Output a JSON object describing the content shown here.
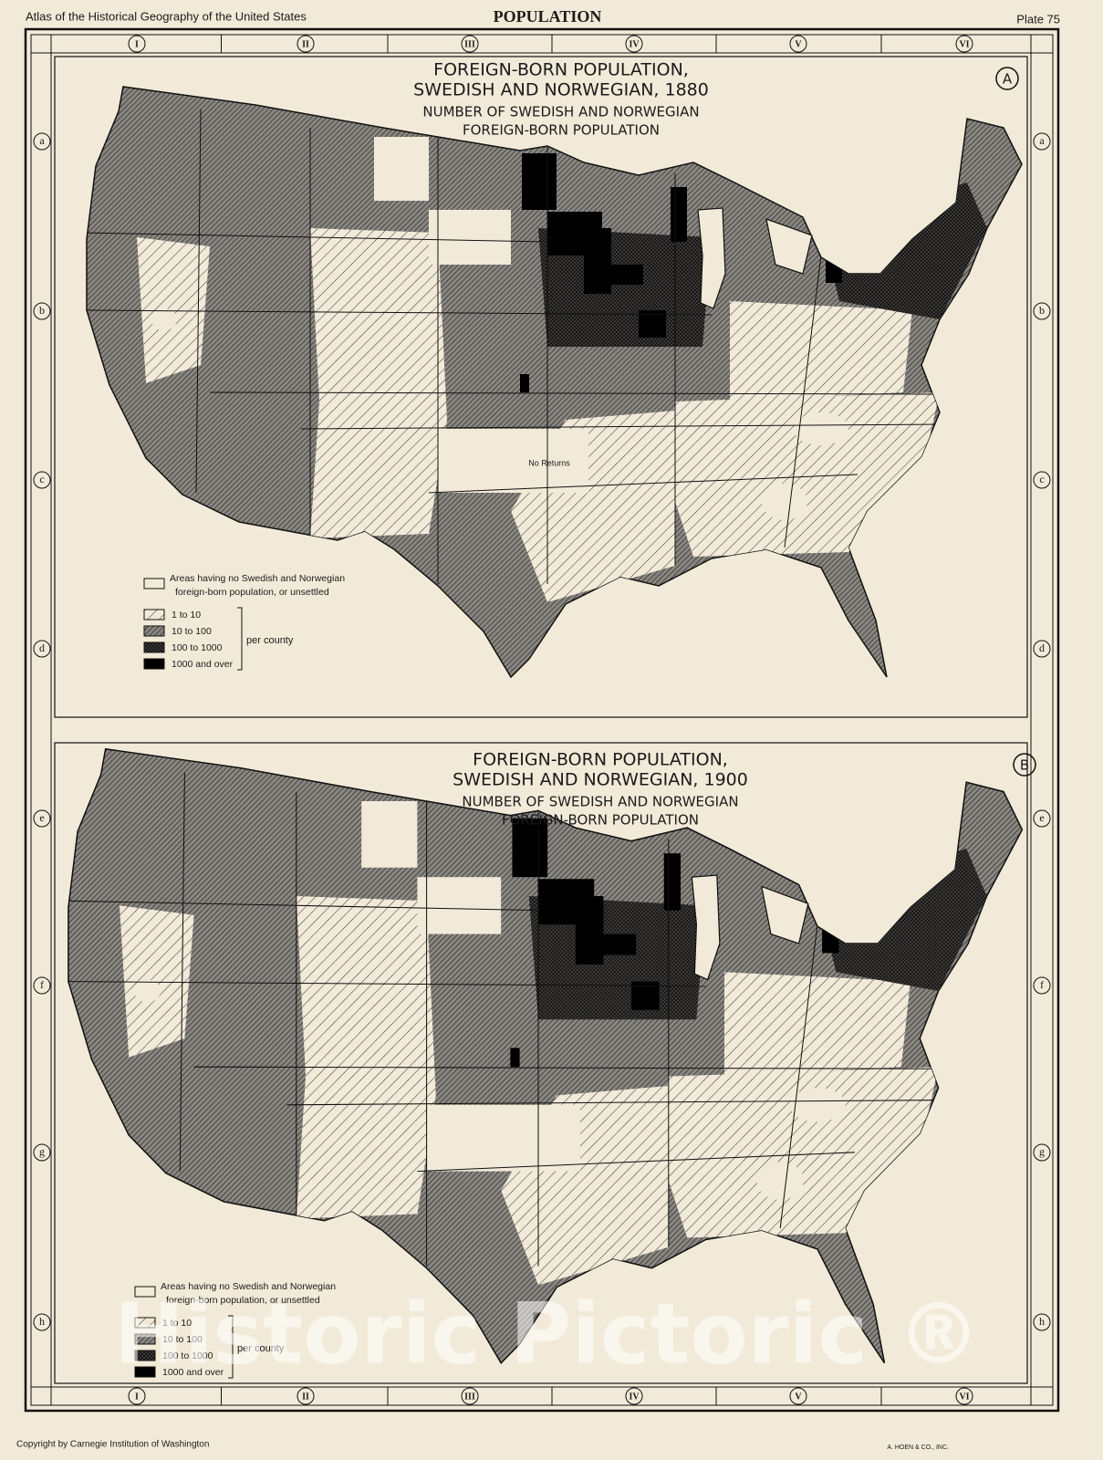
{
  "header": {
    "left": "Atlas of the Historical Geography of the United States",
    "center": "POPULATION",
    "right": "Plate  75"
  },
  "columns": [
    "I",
    "II",
    "III",
    "IV",
    "V",
    "VI"
  ],
  "rows": [
    "a",
    "b",
    "c",
    "d",
    "e",
    "f",
    "g",
    "h"
  ],
  "maps": [
    {
      "badge": "A",
      "title": [
        "FOREIGN-BORN POPULATION,",
        "SWEDISH AND NORWEGIAN, 1880"
      ],
      "subtitle": [
        "NUMBER OF SWEDISH AND NORWEGIAN",
        "FOREIGN-BORN POPULATION"
      ],
      "no_returns": "No Returns",
      "legend": {
        "none": [
          "Areas having no Swedish and Norwegian",
          "foreign-born population, or unsettled"
        ],
        "classes": [
          "1 to 10",
          "10 to 100",
          "100 to 1000",
          "1000 and over"
        ],
        "group_label": "per county"
      }
    },
    {
      "badge": "B",
      "title": [
        "FOREIGN-BORN POPULATION,",
        "SWEDISH AND NORWEGIAN, 1900"
      ],
      "subtitle": [
        "NUMBER OF SWEDISH AND NORWEGIAN",
        "FOREIGN-BORN POPULATION"
      ],
      "legend": {
        "none": [
          "Areas having no Swedish and Norwegian",
          "foreign-born population, or unsettled"
        ],
        "classes": [
          "1 to 10",
          "10 to 100",
          "100 to 1000",
          "1000 and over"
        ],
        "group_label": "per county"
      }
    }
  ],
  "watermark": "Historic Pictoric ®",
  "footer": {
    "left": "Copyright by Carnegie Institution of Washington",
    "right": "A. HOEN & CO., INC."
  }
}
